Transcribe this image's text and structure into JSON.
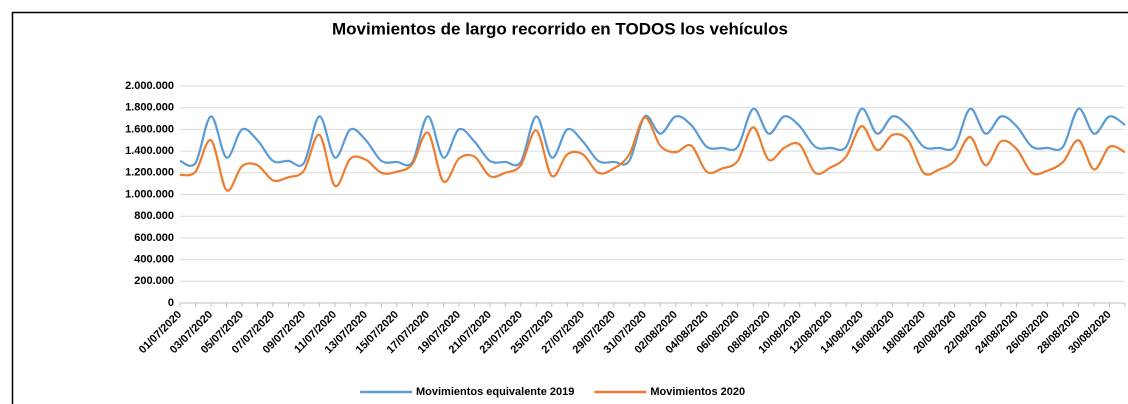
{
  "chart_data": {
    "type": "line",
    "title": "Movimientos de largo recorrido en TODOS los vehículos",
    "categories": [
      "01/07/2020",
      null,
      "03/07/2020",
      null,
      "05/07/2020",
      null,
      "07/07/2020",
      null,
      "09/07/2020",
      null,
      "11/07/2020",
      null,
      "13/07/2020",
      null,
      "15/07/2020",
      null,
      "17/07/2020",
      null,
      "19/07/2020",
      null,
      "21/07/2020",
      null,
      "23/07/2020",
      null,
      "25/07/2020",
      null,
      "27/07/2020",
      null,
      "29/07/2020",
      null,
      "31/07/2020",
      null,
      "02/08/2020",
      null,
      "04/08/2020",
      null,
      "06/08/2020",
      null,
      "08/08/2020",
      null,
      "10/08/2020",
      null,
      "12/08/2020",
      null,
      "14/08/2020",
      null,
      "16/08/2020",
      null,
      "18/08/2020",
      null,
      "20/08/2020",
      null,
      "22/08/2020",
      null,
      "24/08/2020",
      null,
      "26/08/2020",
      null,
      "28/08/2020",
      null,
      "30/08/2020",
      null
    ],
    "series": [
      {
        "name": "Movimientos equivalente 2019",
        "color": "#5b9bd5",
        "values": [
          1310000,
          1290000,
          1720000,
          1340000,
          1600000,
          1500000,
          1310000,
          1310000,
          1290000,
          1720000,
          1340000,
          1600000,
          1500000,
          1310000,
          1300000,
          1300000,
          1720000,
          1340000,
          1600000,
          1490000,
          1310000,
          1300000,
          1300000,
          1720000,
          1340000,
          1600000,
          1490000,
          1310000,
          1300000,
          1310000,
          1720000,
          1560000,
          1720000,
          1640000,
          1440000,
          1430000,
          1440000,
          1790000,
          1560000,
          1720000,
          1630000,
          1440000,
          1430000,
          1440000,
          1790000,
          1560000,
          1720000,
          1630000,
          1440000,
          1430000,
          1440000,
          1790000,
          1560000,
          1720000,
          1630000,
          1440000,
          1430000,
          1440000,
          1790000,
          1560000,
          1720000,
          1640000
        ]
      },
      {
        "name": "Movimientos 2020",
        "color": "#ed7d31",
        "values": [
          1180000,
          1210000,
          1500000,
          1040000,
          1260000,
          1270000,
          1130000,
          1160000,
          1220000,
          1550000,
          1080000,
          1330000,
          1320000,
          1200000,
          1210000,
          1280000,
          1570000,
          1120000,
          1330000,
          1350000,
          1170000,
          1200000,
          1270000,
          1590000,
          1170000,
          1370000,
          1370000,
          1200000,
          1240000,
          1370000,
          1710000,
          1450000,
          1390000,
          1450000,
          1210000,
          1240000,
          1310000,
          1620000,
          1320000,
          1430000,
          1460000,
          1200000,
          1250000,
          1350000,
          1630000,
          1410000,
          1550000,
          1500000,
          1200000,
          1230000,
          1310000,
          1530000,
          1270000,
          1490000,
          1420000,
          1200000,
          1220000,
          1300000,
          1500000,
          1230000,
          1440000,
          1390000
        ]
      }
    ],
    "ylim": [
      0,
      2000000
    ],
    "yticks": [
      0,
      {
        "value": 200000,
        "label": "200.000"
      },
      {
        "value": 400000,
        "label": "400.000"
      },
      {
        "value": 600000,
        "label": "600.000"
      },
      {
        "value": 800000,
        "label": "800.000"
      },
      {
        "value": 1000000,
        "label": "1.000.000"
      },
      {
        "value": 1200000,
        "label": "1.200.000"
      },
      {
        "value": 1400000,
        "label": "1.400.000"
      },
      {
        "value": 1600000,
        "label": "1.600.000"
      },
      {
        "value": 1800000,
        "label": "1.800.000"
      },
      {
        "value": 2000000,
        "label": "2.000.000"
      }
    ],
    "grid": true,
    "legend": "bottom"
  }
}
